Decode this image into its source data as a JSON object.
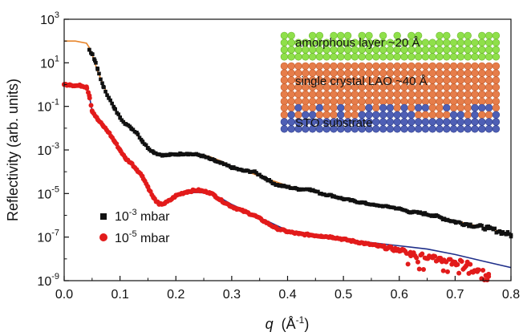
{
  "chart_data": {
    "type": "scatter",
    "xlabel_symbol": "q",
    "xlabel_unit": "(Å",
    "xlabel_unit_exp": "-1",
    "xlabel_unit_close": ")",
    "ylabel": "Reflectivity (arb. units)",
    "xlim": [
      0.0,
      0.8
    ],
    "ylim_log10": [
      -9,
      3
    ],
    "y_scale": "log",
    "grid": false,
    "x_ticks": [
      "0.0",
      "0.1",
      "0.2",
      "0.3",
      "0.4",
      "0.5",
      "0.6",
      "0.7",
      "0.8"
    ],
    "y_ticks": [
      {
        "exp": "3"
      },
      {
        "exp": "1"
      },
      {
        "exp": "-1"
      },
      {
        "exp": "-3"
      },
      {
        "exp": "-5"
      },
      {
        "exp": "-7"
      },
      {
        "exp": "-9"
      }
    ],
    "y_tick_base": "10",
    "legend_placement": "bottom-left",
    "series": [
      {
        "name_prefix": "10",
        "name_exp": "-3",
        "name_suffix": " mbar",
        "marker": "square",
        "color": "#111111",
        "fit_color": "#e8862d",
        "data_x": [
          0.045,
          0.05,
          0.055,
          0.06,
          0.07,
          0.08,
          0.09,
          0.1,
          0.11,
          0.12,
          0.13,
          0.14,
          0.15,
          0.16,
          0.17,
          0.18,
          0.19,
          0.2,
          0.21,
          0.22,
          0.23,
          0.24,
          0.25,
          0.26,
          0.27,
          0.28,
          0.3,
          0.32,
          0.34,
          0.36,
          0.38,
          0.4,
          0.42,
          0.44,
          0.46,
          0.48,
          0.5,
          0.52,
          0.54,
          0.56,
          0.58,
          0.6,
          0.62,
          0.64,
          0.66,
          0.68,
          0.7,
          0.72,
          0.74,
          0.76,
          0.78,
          0.8
        ],
        "data_log10": [
          1.6,
          1.4,
          1.1,
          0.7,
          -0.1,
          -0.6,
          -1.1,
          -1.5,
          -1.8,
          -2.0,
          -2.2,
          -2.6,
          -2.9,
          -3.1,
          -3.2,
          -3.25,
          -3.22,
          -3.2,
          -3.18,
          -3.17,
          -3.2,
          -3.22,
          -3.3,
          -3.4,
          -3.5,
          -3.6,
          -3.8,
          -3.95,
          -4.0,
          -4.3,
          -4.6,
          -4.7,
          -4.8,
          -4.8,
          -5.0,
          -5.1,
          -5.25,
          -5.35,
          -5.45,
          -5.55,
          -5.6,
          -5.7,
          -5.85,
          -5.9,
          -6.0,
          -6.15,
          -6.3,
          -6.4,
          -6.5,
          -6.6,
          -6.75,
          -6.9
        ],
        "fit_x": [
          0.0,
          0.02,
          0.04,
          0.045,
          0.05,
          0.06,
          0.08,
          0.1,
          0.12,
          0.14,
          0.16,
          0.18,
          0.2,
          0.22,
          0.24,
          0.26,
          0.28,
          0.3,
          0.35,
          0.4,
          0.45,
          0.5,
          0.55,
          0.6,
          0.65,
          0.7,
          0.75,
          0.8
        ],
        "fit_log10": [
          2.0,
          2.0,
          1.9,
          1.7,
          1.4,
          0.6,
          -0.6,
          -1.5,
          -2.0,
          -2.6,
          -3.1,
          -3.25,
          -3.2,
          -3.15,
          -3.18,
          -3.3,
          -3.5,
          -3.75,
          -4.2,
          -4.65,
          -4.95,
          -5.25,
          -5.5,
          -5.7,
          -5.95,
          -6.25,
          -6.55,
          -6.85
        ]
      },
      {
        "name_prefix": "10",
        "name_exp": "-5",
        "name_suffix": " mbar",
        "marker": "circle",
        "color": "#e21b1b",
        "fit_color": "#1f2f8a",
        "data_x": [
          0.0,
          0.01,
          0.02,
          0.03,
          0.04,
          0.045,
          0.05,
          0.06,
          0.07,
          0.08,
          0.09,
          0.1,
          0.11,
          0.12,
          0.13,
          0.14,
          0.15,
          0.16,
          0.17,
          0.18,
          0.19,
          0.2,
          0.21,
          0.22,
          0.23,
          0.24,
          0.25,
          0.26,
          0.27,
          0.28,
          0.3,
          0.32,
          0.34,
          0.36,
          0.38,
          0.4,
          0.42,
          0.44,
          0.46,
          0.48,
          0.5,
          0.52,
          0.54,
          0.56,
          0.58,
          0.6,
          0.62,
          0.64,
          0.66,
          0.68,
          0.7,
          0.72,
          0.74,
          0.76
        ],
        "data_log10": [
          0.0,
          0.0,
          -0.05,
          -0.05,
          -0.1,
          -0.5,
          -1.2,
          -1.6,
          -1.9,
          -2.2,
          -2.6,
          -3.0,
          -3.4,
          -3.6,
          -3.9,
          -4.2,
          -4.7,
          -5.2,
          -5.5,
          -5.45,
          -5.3,
          -5.1,
          -5.0,
          -4.92,
          -4.87,
          -4.85,
          -4.9,
          -4.95,
          -5.1,
          -5.3,
          -5.6,
          -5.8,
          -6.0,
          -6.3,
          -6.6,
          -6.75,
          -6.85,
          -6.9,
          -6.95,
          -7.0,
          -7.1,
          -7.2,
          -7.3,
          -7.4,
          -7.5,
          -7.6,
          -7.7,
          -7.8,
          -7.95,
          -8.05,
          -8.15,
          -8.3,
          -8.5,
          -8.7
        ],
        "fit_x": [
          0.0,
          0.02,
          0.04,
          0.045,
          0.05,
          0.06,
          0.08,
          0.1,
          0.12,
          0.14,
          0.16,
          0.17,
          0.18,
          0.2,
          0.22,
          0.24,
          0.26,
          0.28,
          0.3,
          0.35,
          0.4,
          0.45,
          0.5,
          0.55,
          0.6,
          0.65,
          0.7,
          0.75,
          0.8
        ],
        "fit_log10": [
          0.0,
          -0.05,
          -0.1,
          -0.5,
          -1.2,
          -1.6,
          -2.2,
          -3.0,
          -3.6,
          -4.2,
          -5.2,
          -5.55,
          -5.5,
          -5.15,
          -4.97,
          -4.95,
          -5.0,
          -5.2,
          -5.5,
          -6.1,
          -6.7,
          -6.95,
          -7.1,
          -7.25,
          -7.4,
          -7.55,
          -7.8,
          -8.1,
          -8.4
        ]
      }
    ],
    "inset": {
      "layers": [
        {
          "label": "amorphous layer ~20 Å",
          "color": "#8fe04a"
        },
        {
          "label": "single crystal LAO ~40 Å",
          "color": "#e67d4a"
        },
        {
          "label": "STO substrate",
          "color": "#4e5fb5"
        }
      ]
    }
  }
}
